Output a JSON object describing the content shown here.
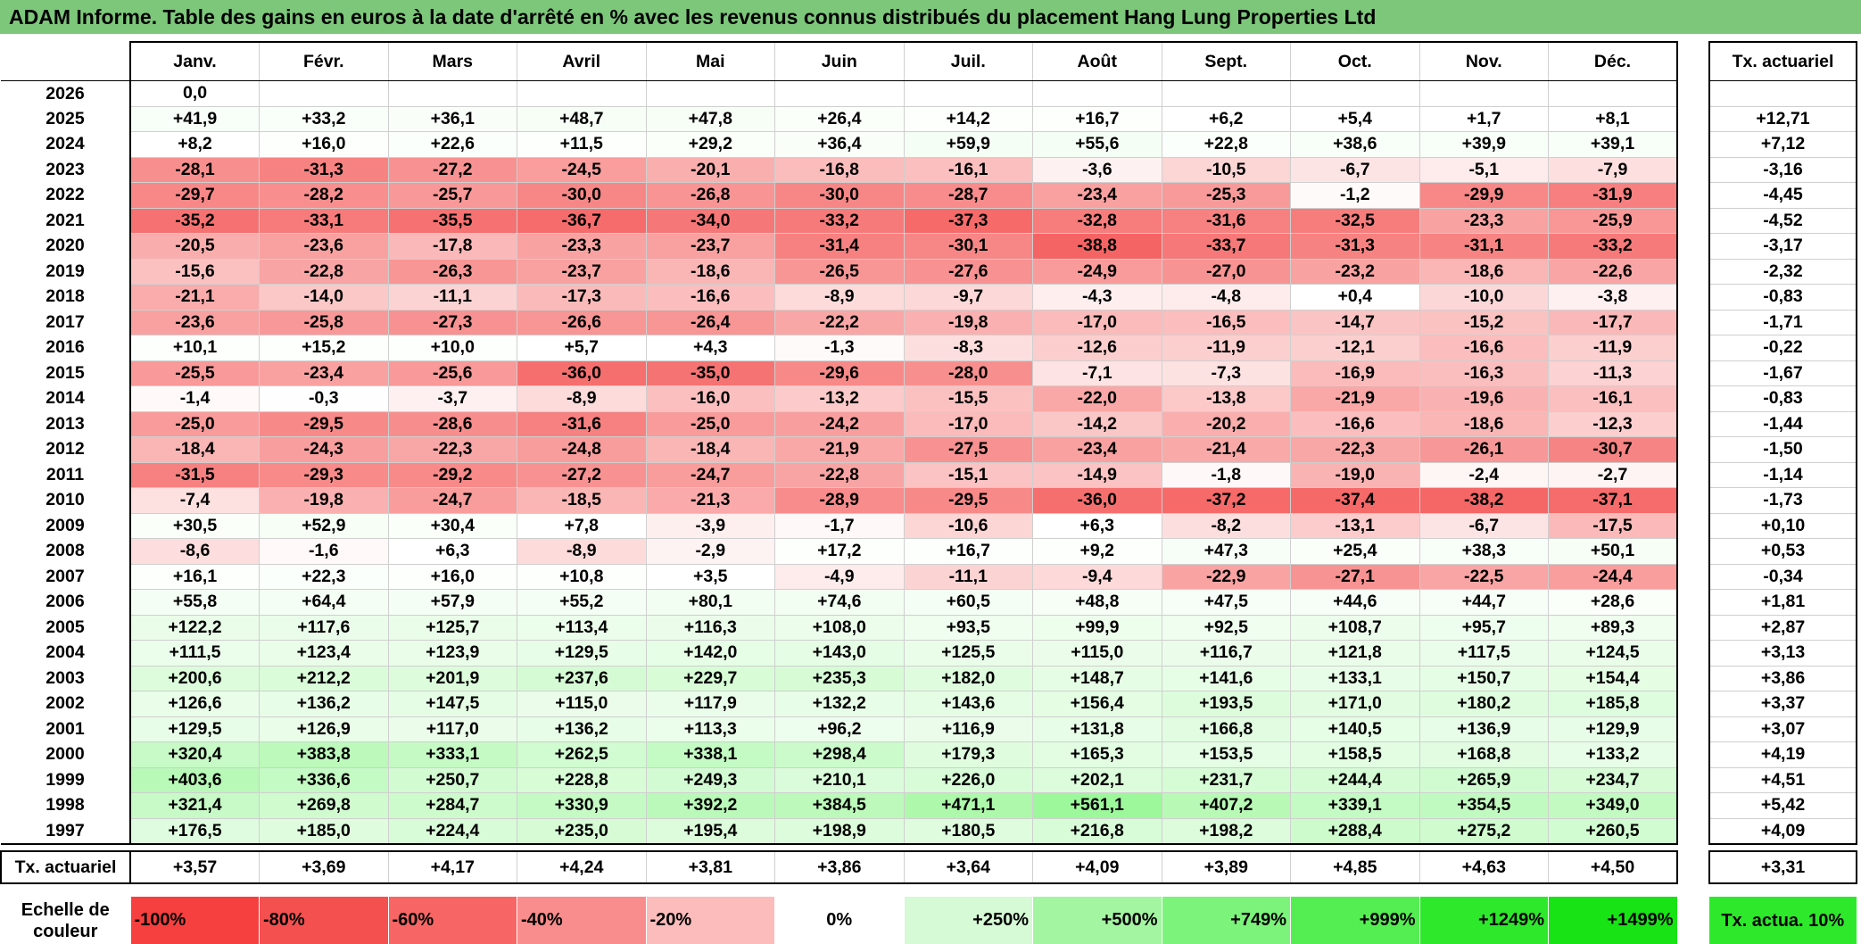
{
  "title": "ADAM Informe. Table des gains en euros à la date d'arrêté en % avec les revenus connus distribués du placement Hang Lung Properties Ltd",
  "months": [
    "Janv.",
    "Févr.",
    "Mars",
    "Avril",
    "Mai",
    "Juin",
    "Juil.",
    "Août",
    "Sept.",
    "Oct.",
    "Nov.",
    "Déc."
  ],
  "tx_header": "Tx. actuariel",
  "rows": [
    {
      "year": "2026",
      "values": [
        "0,0",
        "",
        "",
        "",
        "",
        "",
        "",
        "",
        "",
        "",
        "",
        ""
      ],
      "tx": ""
    },
    {
      "year": "2025",
      "values": [
        "+41,9",
        "+33,2",
        "+36,1",
        "+48,7",
        "+47,8",
        "+26,4",
        "+14,2",
        "+16,7",
        "+6,2",
        "+5,4",
        "+1,7",
        "+8,1"
      ],
      "tx": "+12,71"
    },
    {
      "year": "2024",
      "values": [
        "+8,2",
        "+16,0",
        "+22,6",
        "+11,5",
        "+29,2",
        "+36,4",
        "+59,9",
        "+55,6",
        "+22,8",
        "+38,6",
        "+39,9",
        "+39,1"
      ],
      "tx": "+7,12"
    },
    {
      "year": "2023",
      "values": [
        "-28,1",
        "-31,3",
        "-27,2",
        "-24,5",
        "-20,1",
        "-16,8",
        "-16,1",
        "-3,6",
        "-10,5",
        "-6,7",
        "-5,1",
        "-7,9"
      ],
      "tx": "-3,16"
    },
    {
      "year": "2022",
      "values": [
        "-29,7",
        "-28,2",
        "-25,7",
        "-30,0",
        "-26,8",
        "-30,0",
        "-28,7",
        "-23,4",
        "-25,3",
        "-1,2",
        "-29,9",
        "-31,9"
      ],
      "tx": "-4,45"
    },
    {
      "year": "2021",
      "values": [
        "-35,2",
        "-33,1",
        "-35,5",
        "-36,7",
        "-34,0",
        "-33,2",
        "-37,3",
        "-32,8",
        "-31,6",
        "-32,5",
        "-23,3",
        "-25,9"
      ],
      "tx": "-4,52"
    },
    {
      "year": "2020",
      "values": [
        "-20,5",
        "-23,6",
        "-17,8",
        "-23,3",
        "-23,7",
        "-31,4",
        "-30,1",
        "-38,8",
        "-33,7",
        "-31,3",
        "-31,1",
        "-33,2"
      ],
      "tx": "-3,17"
    },
    {
      "year": "2019",
      "values": [
        "-15,6",
        "-22,8",
        "-26,3",
        "-23,7",
        "-18,6",
        "-26,5",
        "-27,6",
        "-24,9",
        "-27,0",
        "-23,2",
        "-18,6",
        "-22,6"
      ],
      "tx": "-2,32"
    },
    {
      "year": "2018",
      "values": [
        "-21,1",
        "-14,0",
        "-11,1",
        "-17,3",
        "-16,6",
        "-8,9",
        "-9,7",
        "-4,3",
        "-4,8",
        "+0,4",
        "-10,0",
        "-3,8"
      ],
      "tx": "-0,83"
    },
    {
      "year": "2017",
      "values": [
        "-23,6",
        "-25,8",
        "-27,3",
        "-26,6",
        "-26,4",
        "-22,2",
        "-19,8",
        "-17,0",
        "-16,5",
        "-14,7",
        "-15,2",
        "-17,7"
      ],
      "tx": "-1,71"
    },
    {
      "year": "2016",
      "values": [
        "+10,1",
        "+15,2",
        "+10,0",
        "+5,7",
        "+4,3",
        "-1,3",
        "-8,3",
        "-12,6",
        "-11,9",
        "-12,1",
        "-16,6",
        "-11,9"
      ],
      "tx": "-0,22"
    },
    {
      "year": "2015",
      "values": [
        "-25,5",
        "-23,4",
        "-25,6",
        "-36,0",
        "-35,0",
        "-29,6",
        "-28,0",
        "-7,1",
        "-7,3",
        "-16,9",
        "-16,3",
        "-11,3"
      ],
      "tx": "-1,67"
    },
    {
      "year": "2014",
      "values": [
        "-1,4",
        "-0,3",
        "-3,7",
        "-8,9",
        "-16,0",
        "-13,2",
        "-15,5",
        "-22,0",
        "-13,8",
        "-21,9",
        "-19,6",
        "-16,1"
      ],
      "tx": "-0,83"
    },
    {
      "year": "2013",
      "values": [
        "-25,0",
        "-29,5",
        "-28,6",
        "-31,6",
        "-25,0",
        "-24,2",
        "-17,0",
        "-14,2",
        "-20,2",
        "-16,6",
        "-18,6",
        "-12,3"
      ],
      "tx": "-1,44"
    },
    {
      "year": "2012",
      "values": [
        "-18,4",
        "-24,3",
        "-22,3",
        "-24,8",
        "-18,4",
        "-21,9",
        "-27,5",
        "-23,4",
        "-21,4",
        "-22,3",
        "-26,1",
        "-30,7"
      ],
      "tx": "-1,50"
    },
    {
      "year": "2011",
      "values": [
        "-31,5",
        "-29,3",
        "-29,2",
        "-27,2",
        "-24,7",
        "-22,8",
        "-15,1",
        "-14,9",
        "-1,8",
        "-19,0",
        "-2,4",
        "-2,7"
      ],
      "tx": "-1,14"
    },
    {
      "year": "2010",
      "values": [
        "-7,4",
        "-19,8",
        "-24,7",
        "-18,5",
        "-21,3",
        "-28,9",
        "-29,5",
        "-36,0",
        "-37,2",
        "-37,4",
        "-38,2",
        "-37,1"
      ],
      "tx": "-1,73"
    },
    {
      "year": "2009",
      "values": [
        "+30,5",
        "+52,9",
        "+30,4",
        "+7,8",
        "-3,9",
        "-1,7",
        "-10,6",
        "+6,3",
        "-8,2",
        "-13,1",
        "-6,7",
        "-17,5"
      ],
      "tx": "+0,10"
    },
    {
      "year": "2008",
      "values": [
        "-8,6",
        "-1,6",
        "+6,3",
        "-8,9",
        "-2,9",
        "+17,2",
        "+16,7",
        "+9,2",
        "+47,3",
        "+25,4",
        "+38,3",
        "+50,1"
      ],
      "tx": "+0,53"
    },
    {
      "year": "2007",
      "values": [
        "+16,1",
        "+22,3",
        "+16,0",
        "+10,8",
        "+3,5",
        "-4,9",
        "-11,1",
        "-9,4",
        "-22,9",
        "-27,1",
        "-22,5",
        "-24,4"
      ],
      "tx": "-0,34"
    },
    {
      "year": "2006",
      "values": [
        "+55,8",
        "+64,4",
        "+57,9",
        "+55,2",
        "+80,1",
        "+74,6",
        "+60,5",
        "+48,8",
        "+47,5",
        "+44,6",
        "+44,7",
        "+28,6"
      ],
      "tx": "+1,81"
    },
    {
      "year": "2005",
      "values": [
        "+122,2",
        "+117,6",
        "+125,7",
        "+113,4",
        "+116,3",
        "+108,0",
        "+93,5",
        "+99,9",
        "+92,5",
        "+108,7",
        "+95,7",
        "+89,3"
      ],
      "tx": "+2,87"
    },
    {
      "year": "2004",
      "values": [
        "+111,5",
        "+123,4",
        "+123,9",
        "+129,5",
        "+142,0",
        "+143,0",
        "+125,5",
        "+115,0",
        "+116,7",
        "+121,8",
        "+117,5",
        "+124,5"
      ],
      "tx": "+3,13"
    },
    {
      "year": "2003",
      "values": [
        "+200,6",
        "+212,2",
        "+201,9",
        "+237,6",
        "+229,7",
        "+235,3",
        "+182,0",
        "+148,7",
        "+141,6",
        "+133,1",
        "+150,7",
        "+154,4"
      ],
      "tx": "+3,86"
    },
    {
      "year": "2002",
      "values": [
        "+126,6",
        "+136,2",
        "+147,5",
        "+115,0",
        "+117,9",
        "+132,2",
        "+143,6",
        "+156,4",
        "+193,5",
        "+171,0",
        "+180,2",
        "+185,8"
      ],
      "tx": "+3,37"
    },
    {
      "year": "2001",
      "values": [
        "+129,5",
        "+126,9",
        "+117,0",
        "+136,2",
        "+113,3",
        "+96,2",
        "+116,9",
        "+131,8",
        "+166,8",
        "+140,5",
        "+136,9",
        "+129,9"
      ],
      "tx": "+3,07"
    },
    {
      "year": "2000",
      "values": [
        "+320,4",
        "+383,8",
        "+333,1",
        "+262,5",
        "+338,1",
        "+298,4",
        "+179,3",
        "+165,3",
        "+153,5",
        "+158,5",
        "+168,8",
        "+133,2"
      ],
      "tx": "+4,19"
    },
    {
      "year": "1999",
      "values": [
        "+403,6",
        "+336,6",
        "+250,7",
        "+228,8",
        "+249,3",
        "+210,1",
        "+226,0",
        "+202,1",
        "+231,7",
        "+244,4",
        "+265,9",
        "+234,7"
      ],
      "tx": "+4,51"
    },
    {
      "year": "1998",
      "values": [
        "+321,4",
        "+269,8",
        "+284,7",
        "+330,9",
        "+392,2",
        "+384,5",
        "+471,1",
        "+561,1",
        "+407,2",
        "+339,1",
        "+354,5",
        "+349,0"
      ],
      "tx": "+5,42"
    },
    {
      "year": "1997",
      "values": [
        "+176,5",
        "+185,0",
        "+224,4",
        "+235,0",
        "+195,4",
        "+198,9",
        "+180,5",
        "+216,8",
        "+198,2",
        "+288,4",
        "+275,2",
        "+260,5"
      ],
      "tx": "+4,09"
    }
  ],
  "footer": {
    "label": "Tx. actuariel",
    "values": [
      "+3,57",
      "+3,69",
      "+4,17",
      "+4,24",
      "+3,81",
      "+3,86",
      "+3,64",
      "+4,09",
      "+3,89",
      "+4,85",
      "+4,63",
      "+4,50"
    ],
    "tx": "+3,31"
  },
  "scale": {
    "label": "Echelle de couleur",
    "steps": [
      {
        "text": "-100%",
        "color": "#f5403f"
      },
      {
        "text": "-80%",
        "color": "#f55050"
      },
      {
        "text": "-60%",
        "color": "#f76565"
      },
      {
        "text": "-40%",
        "color": "#f98c8c"
      },
      {
        "text": "-20%",
        "color": "#fcbcbc"
      },
      {
        "text": "0%",
        "color": "#ffffff"
      },
      {
        "text": "+250%",
        "color": "#d5fad5"
      },
      {
        "text": "+500%",
        "color": "#a4f5a2"
      },
      {
        "text": "+749%",
        "color": "#7cf37a"
      },
      {
        "text": "+999%",
        "color": "#55ee52"
      },
      {
        "text": "+1249%",
        "color": "#2ee82b"
      },
      {
        "text": "+1499%",
        "color": "#18e315"
      }
    ],
    "tx_legend": "Tx. actua. 10%",
    "tx_legend_color": "#2ee82b"
  },
  "colors": {
    "title_bg": "#7dc77b",
    "negative_max": "#f5403f",
    "positive_max": "#18e315"
  }
}
